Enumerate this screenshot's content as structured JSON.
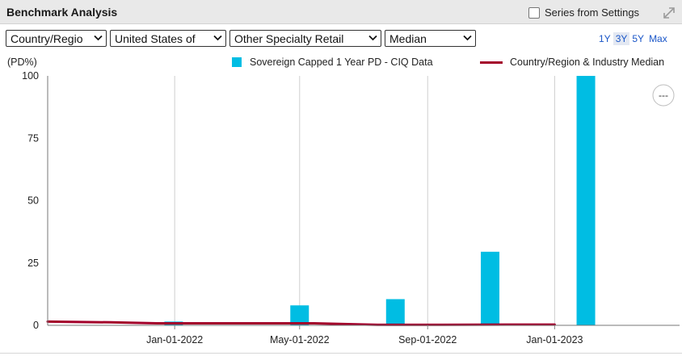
{
  "header": {
    "title": "Benchmark Analysis",
    "series_from_settings_label": "Series from Settings"
  },
  "filters": [
    {
      "value": "Country/Regio"
    },
    {
      "value": "United States of"
    },
    {
      "value": "Other Specialty Retail"
    },
    {
      "value": "Median"
    }
  ],
  "range_buttons": [
    {
      "label": "1Y",
      "active": false
    },
    {
      "label": "3Y",
      "active": true
    },
    {
      "label": "5Y",
      "active": false
    },
    {
      "label": "Max",
      "active": false
    }
  ],
  "more_button_label": "---",
  "colors": {
    "bar": "#00bde3",
    "line": "#a3002a",
    "grid": "#cfcfcf",
    "link": "#1a56c8"
  },
  "chart_data": {
    "type": "bar",
    "ylabel": "(PD%)",
    "ylim": [
      0,
      100
    ],
    "yticks": [
      0,
      25,
      50,
      75,
      100
    ],
    "xlim": [
      "2021-09-01",
      "2023-05-01"
    ],
    "xticks": [
      "Jan-01-2022",
      "May-01-2022",
      "Sep-01-2022",
      "Jan-01-2023"
    ],
    "grid": true,
    "legend_position": "top-right",
    "series": [
      {
        "name": "Sovereign Capped 1 Year PD - CIQ Data",
        "type": "bar",
        "points": [
          {
            "x": "2021-12-31",
            "y": 1.5
          },
          {
            "x": "2022-05-01",
            "y": 8.0
          },
          {
            "x": "2022-08-01",
            "y": 10.5
          },
          {
            "x": "2022-10-31",
            "y": 29.5
          },
          {
            "x": "2023-01-31",
            "y": 100
          }
        ]
      },
      {
        "name": "Country/Region & Industry Median",
        "type": "line",
        "points": [
          {
            "x": "2021-09-01",
            "y": 1.5
          },
          {
            "x": "2021-11-01",
            "y": 1.2
          },
          {
            "x": "2021-12-15",
            "y": 0.8
          },
          {
            "x": "2022-03-01",
            "y": 0.8
          },
          {
            "x": "2022-05-15",
            "y": 0.8
          },
          {
            "x": "2022-07-15",
            "y": 0.2
          },
          {
            "x": "2022-09-15",
            "y": 0.2
          },
          {
            "x": "2022-11-15",
            "y": 0.3
          },
          {
            "x": "2023-01-01",
            "y": 0.3
          }
        ]
      }
    ]
  }
}
